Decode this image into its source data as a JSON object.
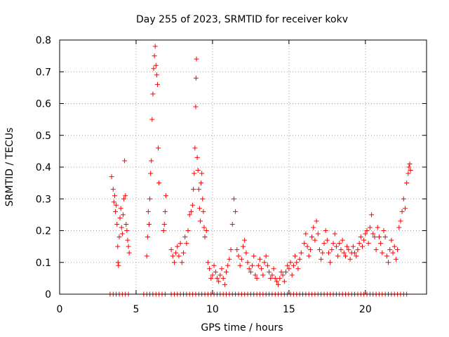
{
  "chart_data": {
    "type": "scatter",
    "title": "Day 255 of 2023, SRMTID for receiver kokv",
    "xlabel": "GPS time / hours",
    "ylabel": "SRMTID / TECUs",
    "xlim": [
      0,
      24
    ],
    "ylim": [
      0,
      0.8
    ],
    "xticks": [
      0,
      5,
      10,
      15,
      20
    ],
    "yticks": [
      0,
      0.1,
      0.2,
      0.3,
      0.4,
      0.5,
      0.6,
      0.7,
      0.8
    ],
    "xtick_labels": [
      "0",
      "5",
      "10",
      "15",
      "20"
    ],
    "ytick_labels": [
      "0",
      "0.1",
      "0.2",
      "0.3",
      "0.4",
      "0.5",
      "0.6",
      "0.7",
      "0.8"
    ],
    "grid": true,
    "marker": "+",
    "color": "#ff0000",
    "series": [
      {
        "name": "SRMTID",
        "points": [
          [
            3.4,
            0.37
          ],
          [
            3.5,
            0.33
          ],
          [
            3.55,
            0.29
          ],
          [
            3.6,
            0.31
          ],
          [
            3.65,
            0.26
          ],
          [
            3.7,
            0.28
          ],
          [
            3.75,
            0.22
          ],
          [
            3.8,
            0.15
          ],
          [
            3.82,
            0.1
          ],
          [
            3.85,
            0.09
          ],
          [
            3.9,
            0.18
          ],
          [
            3.95,
            0.24
          ],
          [
            4.0,
            0.27
          ],
          [
            4.05,
            0.21
          ],
          [
            4.1,
            0.19
          ],
          [
            4.15,
            0.25
          ],
          [
            4.2,
            0.3
          ],
          [
            4.25,
            0.42
          ],
          [
            4.3,
            0.31
          ],
          [
            4.35,
            0.22
          ],
          [
            4.4,
            0.2
          ],
          [
            4.45,
            0.17
          ],
          [
            4.5,
            0.15
          ],
          [
            4.55,
            0.13
          ],
          [
            5.7,
            0.12
          ],
          [
            5.75,
            0.18
          ],
          [
            5.8,
            0.26
          ],
          [
            5.85,
            0.22
          ],
          [
            5.9,
            0.3
          ],
          [
            5.95,
            0.38
          ],
          [
            6.0,
            0.42
          ],
          [
            6.05,
            0.55
          ],
          [
            6.1,
            0.63
          ],
          [
            6.15,
            0.71
          ],
          [
            6.2,
            0.75
          ],
          [
            6.25,
            0.78
          ],
          [
            6.3,
            0.72
          ],
          [
            6.35,
            0.69
          ],
          [
            6.4,
            0.66
          ],
          [
            6.45,
            0.46
          ],
          [
            6.5,
            0.35
          ],
          [
            6.8,
            0.2
          ],
          [
            6.85,
            0.22
          ],
          [
            6.9,
            0.26
          ],
          [
            6.95,
            0.31
          ],
          [
            7.3,
            0.14
          ],
          [
            7.4,
            0.12
          ],
          [
            7.5,
            0.1
          ],
          [
            7.6,
            0.13
          ],
          [
            7.7,
            0.15
          ],
          [
            7.8,
            0.12
          ],
          [
            7.9,
            0.16
          ],
          [
            8.0,
            0.1
          ],
          [
            8.1,
            0.13
          ],
          [
            8.2,
            0.18
          ],
          [
            8.3,
            0.16
          ],
          [
            8.4,
            0.2
          ],
          [
            8.5,
            0.25
          ],
          [
            8.6,
            0.26
          ],
          [
            8.7,
            0.28
          ],
          [
            8.75,
            0.33
          ],
          [
            8.8,
            0.38
          ],
          [
            8.85,
            0.46
          ],
          [
            8.9,
            0.59
          ],
          [
            8.92,
            0.68
          ],
          [
            8.95,
            0.74
          ],
          [
            9.0,
            0.43
          ],
          [
            9.05,
            0.39
          ],
          [
            9.1,
            0.33
          ],
          [
            9.15,
            0.27
          ],
          [
            9.2,
            0.23
          ],
          [
            9.25,
            0.35
          ],
          [
            9.3,
            0.38
          ],
          [
            9.35,
            0.3
          ],
          [
            9.4,
            0.26
          ],
          [
            9.45,
            0.21
          ],
          [
            9.5,
            0.18
          ],
          [
            9.6,
            0.2
          ],
          [
            9.7,
            0.1
          ],
          [
            9.8,
            0.08
          ],
          [
            9.9,
            0.05
          ],
          [
            10.0,
            0.06
          ],
          [
            10.1,
            0.09
          ],
          [
            10.2,
            0.07
          ],
          [
            10.3,
            0.05
          ],
          [
            10.4,
            0.04
          ],
          [
            10.5,
            0.06
          ],
          [
            10.6,
            0.08
          ],
          [
            10.7,
            0.05
          ],
          [
            10.8,
            0.03
          ],
          [
            10.9,
            0.07
          ],
          [
            11.0,
            0.09
          ],
          [
            11.1,
            0.11
          ],
          [
            11.2,
            0.14
          ],
          [
            11.3,
            0.22
          ],
          [
            11.4,
            0.3
          ],
          [
            11.5,
            0.26
          ],
          [
            11.6,
            0.14
          ],
          [
            11.7,
            0.12
          ],
          [
            11.8,
            0.09
          ],
          [
            11.9,
            0.11
          ],
          [
            12.0,
            0.15
          ],
          [
            12.1,
            0.17
          ],
          [
            12.2,
            0.13
          ],
          [
            12.3,
            0.1
          ],
          [
            12.4,
            0.08
          ],
          [
            12.5,
            0.07
          ],
          [
            12.6,
            0.09
          ],
          [
            12.7,
            0.12
          ],
          [
            12.8,
            0.06
          ],
          [
            12.9,
            0.05
          ],
          [
            13.0,
            0.09
          ],
          [
            13.1,
            0.11
          ],
          [
            13.2,
            0.08
          ],
          [
            13.3,
            0.06
          ],
          [
            13.4,
            0.1
          ],
          [
            13.5,
            0.12
          ],
          [
            13.6,
            0.09
          ],
          [
            13.7,
            0.07
          ],
          [
            13.8,
            0.05
          ],
          [
            13.9,
            0.06
          ],
          [
            14.0,
            0.08
          ],
          [
            14.1,
            0.05
          ],
          [
            14.2,
            0.04
          ],
          [
            14.3,
            0.03
          ],
          [
            14.4,
            0.05
          ],
          [
            14.5,
            0.07
          ],
          [
            14.6,
            0.06
          ],
          [
            14.7,
            0.04
          ],
          [
            14.8,
            0.07
          ],
          [
            14.9,
            0.09
          ],
          [
            15.0,
            0.08
          ],
          [
            15.1,
            0.1
          ],
          [
            15.2,
            0.06
          ],
          [
            15.3,
            0.09
          ],
          [
            15.4,
            0.12
          ],
          [
            15.5,
            0.1
          ],
          [
            15.6,
            0.08
          ],
          [
            15.7,
            0.11
          ],
          [
            15.8,
            0.13
          ],
          [
            16.0,
            0.16
          ],
          [
            16.1,
            0.19
          ],
          [
            16.2,
            0.15
          ],
          [
            16.3,
            0.12
          ],
          [
            16.4,
            0.14
          ],
          [
            16.5,
            0.18
          ],
          [
            16.6,
            0.21
          ],
          [
            16.7,
            0.17
          ],
          [
            16.8,
            0.23
          ],
          [
            16.9,
            0.19
          ],
          [
            17.0,
            0.14
          ],
          [
            17.1,
            0.11
          ],
          [
            17.2,
            0.13
          ],
          [
            17.3,
            0.16
          ],
          [
            17.4,
            0.2
          ],
          [
            17.5,
            0.17
          ],
          [
            17.6,
            0.13
          ],
          [
            17.7,
            0.1
          ],
          [
            17.8,
            0.14
          ],
          [
            17.9,
            0.16
          ],
          [
            18.0,
            0.19
          ],
          [
            18.1,
            0.15
          ],
          [
            18.2,
            0.12
          ],
          [
            18.3,
            0.16
          ],
          [
            18.4,
            0.14
          ],
          [
            18.5,
            0.17
          ],
          [
            18.6,
            0.13
          ],
          [
            18.7,
            0.12
          ],
          [
            18.8,
            0.15
          ],
          [
            18.9,
            0.14
          ],
          [
            19.0,
            0.11
          ],
          [
            19.1,
            0.13
          ],
          [
            19.2,
            0.15
          ],
          [
            19.3,
            0.13
          ],
          [
            19.4,
            0.12
          ],
          [
            19.5,
            0.14
          ],
          [
            19.6,
            0.16
          ],
          [
            19.7,
            0.18
          ],
          [
            19.8,
            0.15
          ],
          [
            19.9,
            0.17
          ],
          [
            20.0,
            0.19
          ],
          [
            20.1,
            0.2
          ],
          [
            20.2,
            0.16
          ],
          [
            20.3,
            0.21
          ],
          [
            20.4,
            0.25
          ],
          [
            20.5,
            0.19
          ],
          [
            20.6,
            0.18
          ],
          [
            20.7,
            0.14
          ],
          [
            20.8,
            0.21
          ],
          [
            20.9,
            0.18
          ],
          [
            21.0,
            0.16
          ],
          [
            21.1,
            0.13
          ],
          [
            21.2,
            0.2
          ],
          [
            21.3,
            0.18
          ],
          [
            21.4,
            0.12
          ],
          [
            21.5,
            0.1
          ],
          [
            21.6,
            0.14
          ],
          [
            21.7,
            0.17
          ],
          [
            21.8,
            0.13
          ],
          [
            21.9,
            0.15
          ],
          [
            22.0,
            0.11
          ],
          [
            22.1,
            0.14
          ],
          [
            22.2,
            0.21
          ],
          [
            22.3,
            0.23
          ],
          [
            22.4,
            0.26
          ],
          [
            22.5,
            0.3
          ],
          [
            22.6,
            0.27
          ],
          [
            22.7,
            0.35
          ],
          [
            22.8,
            0.38
          ],
          [
            22.85,
            0.4
          ],
          [
            22.9,
            0.41
          ],
          [
            22.95,
            0.39
          ]
        ],
        "zero_points_x": [
          3.3,
          3.5,
          3.7,
          3.9,
          4.1,
          4.3,
          4.5,
          5.5,
          5.7,
          5.9,
          6.1,
          6.3,
          6.5,
          6.7,
          6.9,
          7.3,
          7.5,
          7.7,
          7.9,
          8.1,
          8.3,
          8.5,
          8.7,
          8.9,
          9.1,
          9.3,
          9.5,
          9.7,
          9.9,
          10.1,
          10.3,
          10.5,
          10.7,
          10.9,
          11.1,
          11.3,
          11.5,
          11.7,
          11.9,
          12.1,
          12.3,
          12.5,
          12.7,
          12.9,
          13.1,
          13.3,
          13.5,
          13.7,
          13.9,
          14.1,
          14.3,
          14.5,
          14.7,
          14.9,
          15.1,
          15.3,
          15.5,
          15.7,
          15.9,
          16.1,
          16.3,
          16.5,
          16.7,
          16.9,
          17.1,
          17.3,
          17.5,
          17.7,
          17.9,
          18.1,
          18.3,
          18.5,
          18.7,
          18.9,
          19.1,
          19.3,
          19.5,
          19.7,
          19.9,
          20.1,
          20.3,
          20.5,
          20.7,
          20.9,
          21.1,
          21.3,
          21.5,
          21.7,
          21.9,
          22.1,
          22.3,
          22.5,
          22.7
        ]
      }
    ]
  }
}
